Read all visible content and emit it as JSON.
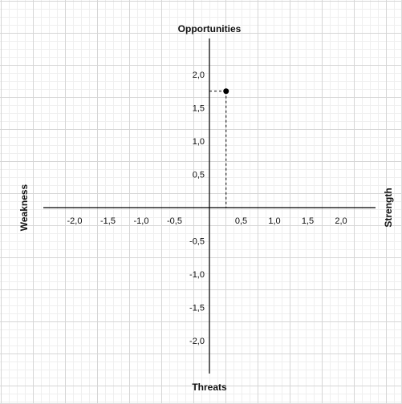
{
  "chart_data": {
    "type": "scatter",
    "title": "",
    "labels": {
      "top": "Opportunities",
      "bottom": "Threats",
      "left": "Weakness",
      "right": "Strength"
    },
    "xlim": [
      -2.5,
      2.5
    ],
    "ylim": [
      -2.5,
      2.5
    ],
    "x_tick_labels": [
      "-2,0",
      "-1,5",
      "-1,0",
      "-0,5",
      "0,5",
      "1,0",
      "1,5",
      "2,0"
    ],
    "y_tick_labels": [
      "2,0",
      "1,5",
      "1,0",
      "0,5",
      "-0,5",
      "-1,0",
      "-1,5",
      "-2,0"
    ],
    "points": [
      {
        "x": 0.25,
        "y": 1.75
      }
    ],
    "guide_lines": "dashed",
    "grid": true
  }
}
